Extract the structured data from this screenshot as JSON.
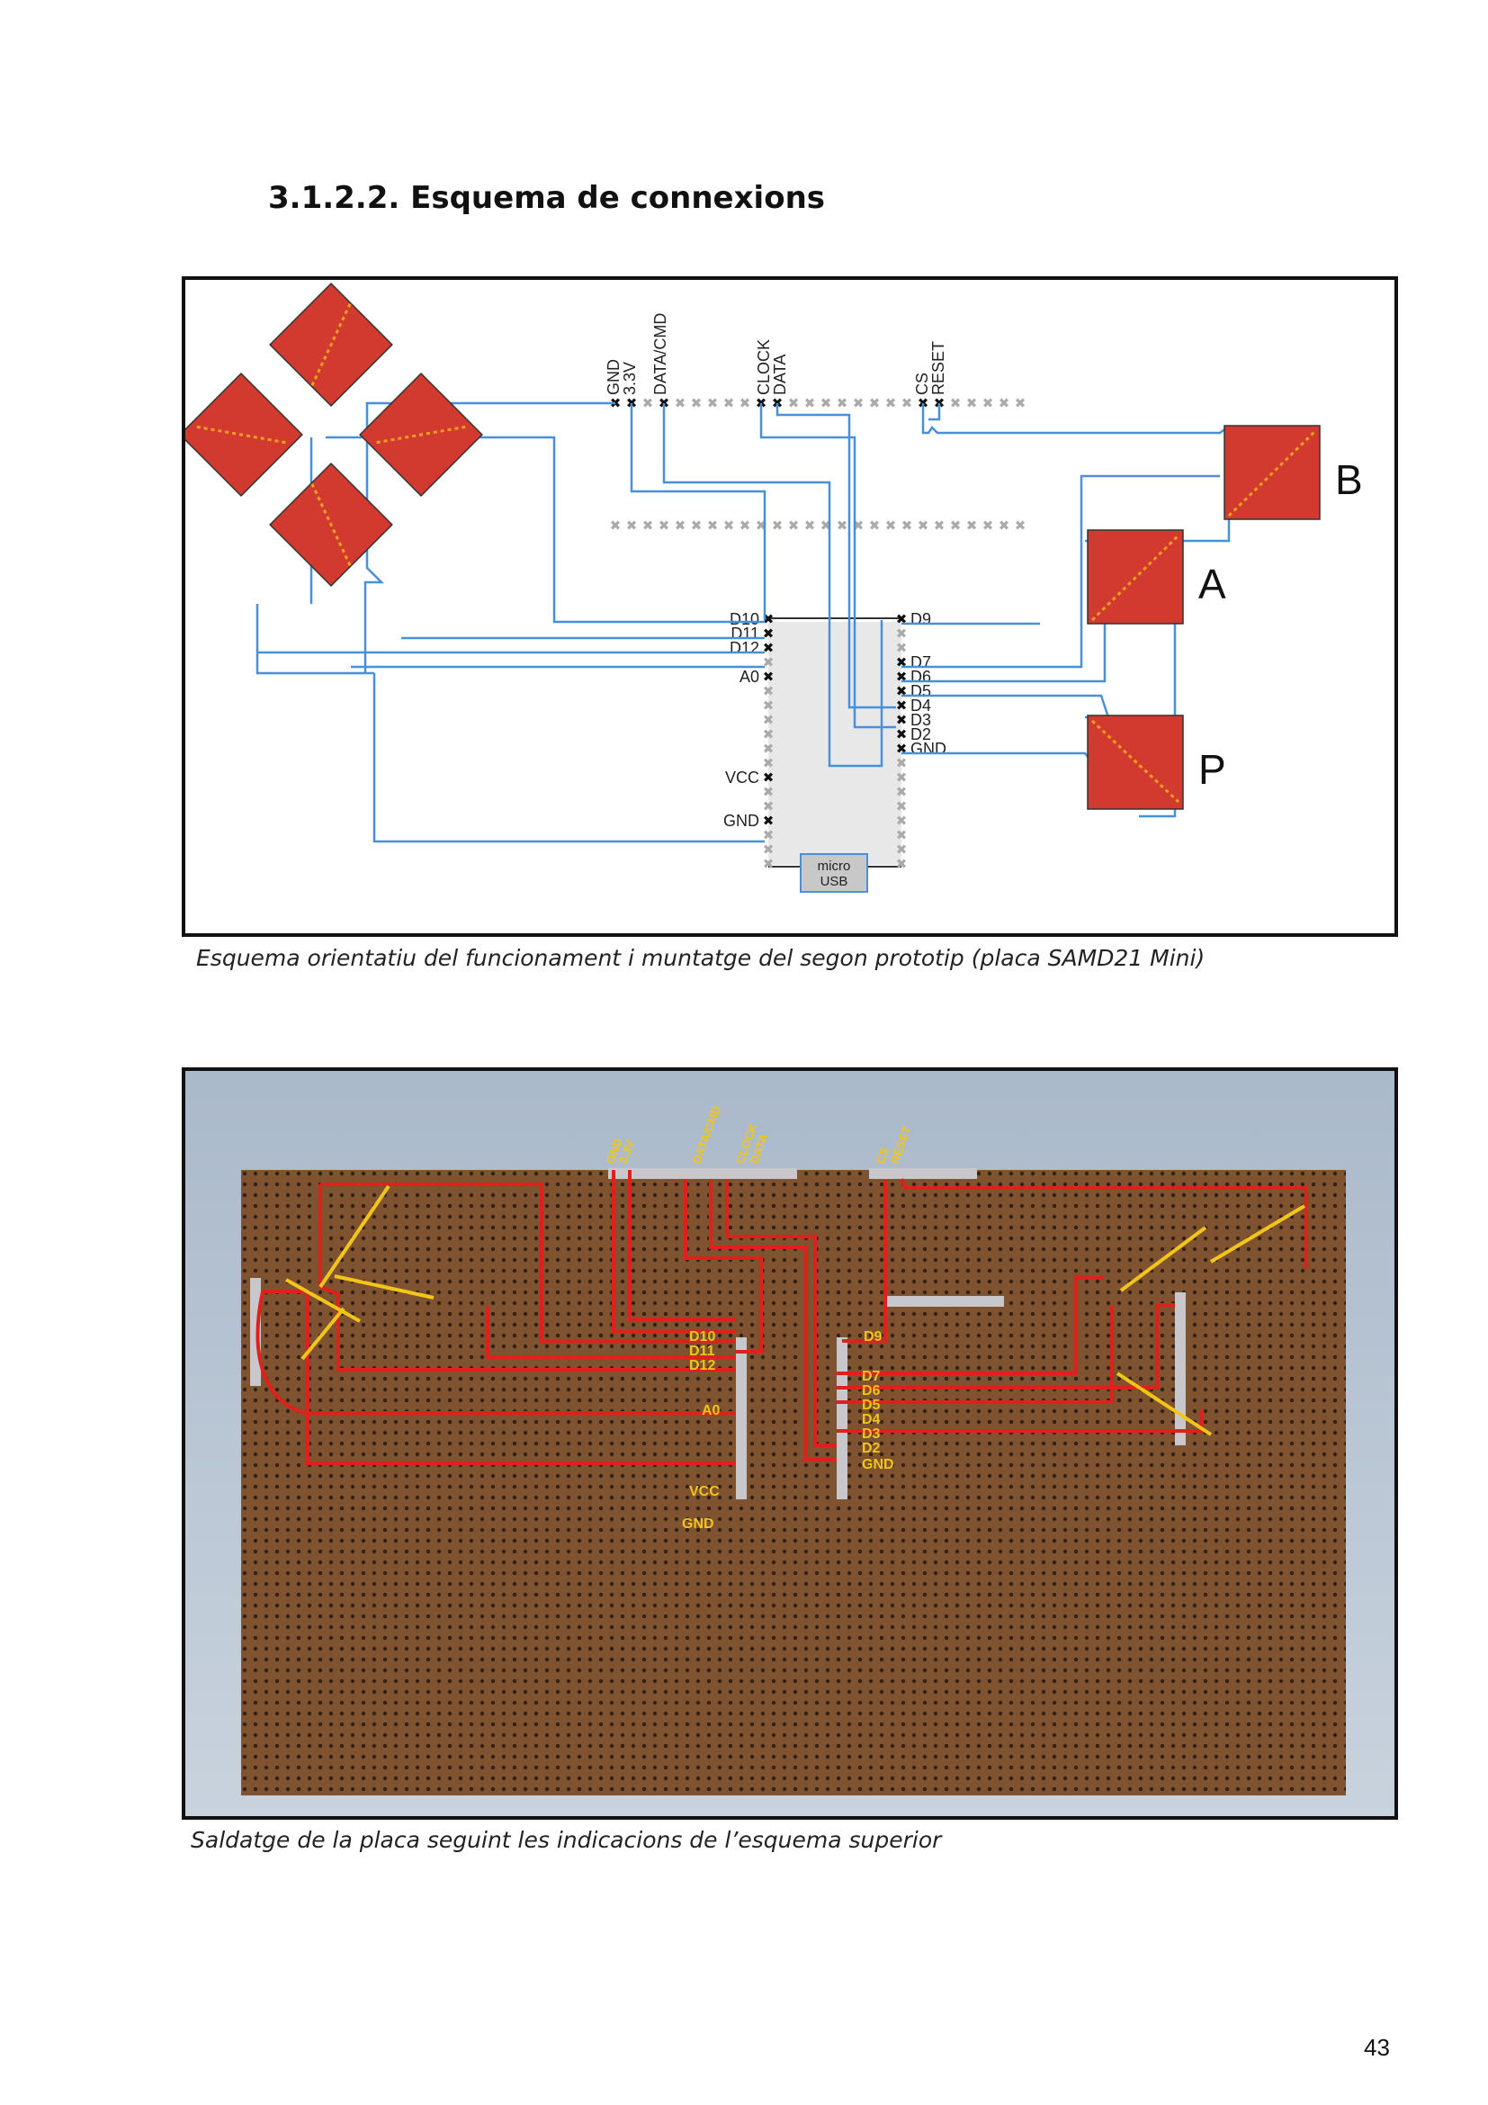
{
  "heading": "3.1.2.2. Esquema de connexions",
  "schematic": {
    "header_labels": [
      "GND",
      "3.3V",
      "DATA/CMD",
      "CLOCK",
      "DATA",
      "CS",
      "RESET"
    ],
    "left_pins": [
      "D10",
      "D11",
      "D12",
      "A0",
      "VCC",
      "GND"
    ],
    "right_pins": [
      "D9",
      "D7",
      "D6",
      "D5",
      "D4",
      "D3",
      "D2",
      "GND"
    ],
    "usb_label_line1": "micro",
    "usb_label_line2": "USB",
    "button_labels": [
      "B",
      "A",
      "P"
    ],
    "colors": {
      "wire": "#4a90d9",
      "button": "#d23a2f",
      "diagonal": "#f0a020",
      "board": "#e8e8e8"
    }
  },
  "caption1": "Esquema orientatiu del funcionament i muntatge del segon prototip (placa SAMD21 Mini)",
  "photo": {
    "header_labels": [
      "GND",
      "3.3V",
      "DATA/CMD",
      "CLOCK",
      "DATA",
      "CS",
      "RESET"
    ],
    "left_pins": [
      "D10",
      "D11",
      "D12",
      "A0",
      "VCC",
      "GND"
    ],
    "right_pins": [
      "D9",
      "D7",
      "D6",
      "D5",
      "D4",
      "D3",
      "D2",
      "GND"
    ],
    "colors": {
      "wire": "#e0201b",
      "label": "#f2c618",
      "board": "#8a5a35"
    }
  },
  "caption2": "Saldatge de la placa seguint les indicacions de l’esquema superior",
  "page_number": "43"
}
